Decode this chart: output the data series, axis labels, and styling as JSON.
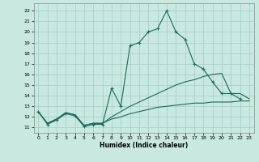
{
  "xlabel": "Humidex (Indice chaleur)",
  "xlim": [
    -0.5,
    23.5
  ],
  "ylim": [
    10.5,
    22.7
  ],
  "xticks": [
    0,
    1,
    2,
    3,
    4,
    5,
    6,
    7,
    8,
    9,
    10,
    11,
    12,
    13,
    14,
    15,
    16,
    17,
    18,
    19,
    20,
    21,
    22,
    23
  ],
  "yticks": [
    11,
    12,
    13,
    14,
    15,
    16,
    17,
    18,
    19,
    20,
    21,
    22
  ],
  "background_color": "#c8e8e0",
  "grid_color": "#9ecfc7",
  "line_color": "#1a6b5a",
  "curve_main_x": [
    0,
    1,
    2,
    3,
    4,
    5,
    6,
    7,
    8,
    9,
    10,
    11,
    12,
    13,
    14,
    15,
    16,
    17,
    18,
    19,
    20,
    21,
    22
  ],
  "curve_main_y": [
    12.5,
    11.3,
    11.7,
    12.3,
    12.1,
    11.1,
    11.3,
    11.3,
    14.7,
    13.0,
    18.7,
    19.0,
    20.0,
    20.3,
    22.0,
    20.0,
    19.3,
    17.0,
    16.5,
    15.3,
    14.2,
    14.2,
    13.7
  ],
  "curve_low_x": [
    0,
    1,
    2,
    3,
    4,
    5,
    6,
    7,
    8,
    9,
    10,
    11,
    12,
    13,
    14,
    15,
    16,
    17,
    18,
    19,
    20,
    21,
    22,
    23
  ],
  "curve_low_y": [
    12.5,
    11.4,
    11.8,
    12.4,
    12.2,
    11.2,
    11.4,
    11.4,
    11.8,
    12.0,
    12.3,
    12.5,
    12.7,
    12.9,
    13.0,
    13.1,
    13.2,
    13.3,
    13.3,
    13.4,
    13.4,
    13.4,
    13.5,
    13.5
  ],
  "curve_mid_x": [
    0,
    1,
    2,
    3,
    4,
    5,
    6,
    7,
    8,
    9,
    10,
    11,
    12,
    13,
    14,
    15,
    16,
    17,
    18,
    19,
    20,
    21,
    22,
    23
  ],
  "curve_mid_y": [
    12.5,
    11.4,
    11.8,
    12.4,
    12.2,
    11.2,
    11.4,
    11.4,
    12.0,
    12.5,
    13.0,
    13.4,
    13.8,
    14.2,
    14.6,
    15.0,
    15.3,
    15.5,
    15.8,
    16.0,
    16.1,
    14.2,
    14.2,
    13.7
  ],
  "figsize": [
    3.2,
    2.0
  ],
  "dpi": 100
}
